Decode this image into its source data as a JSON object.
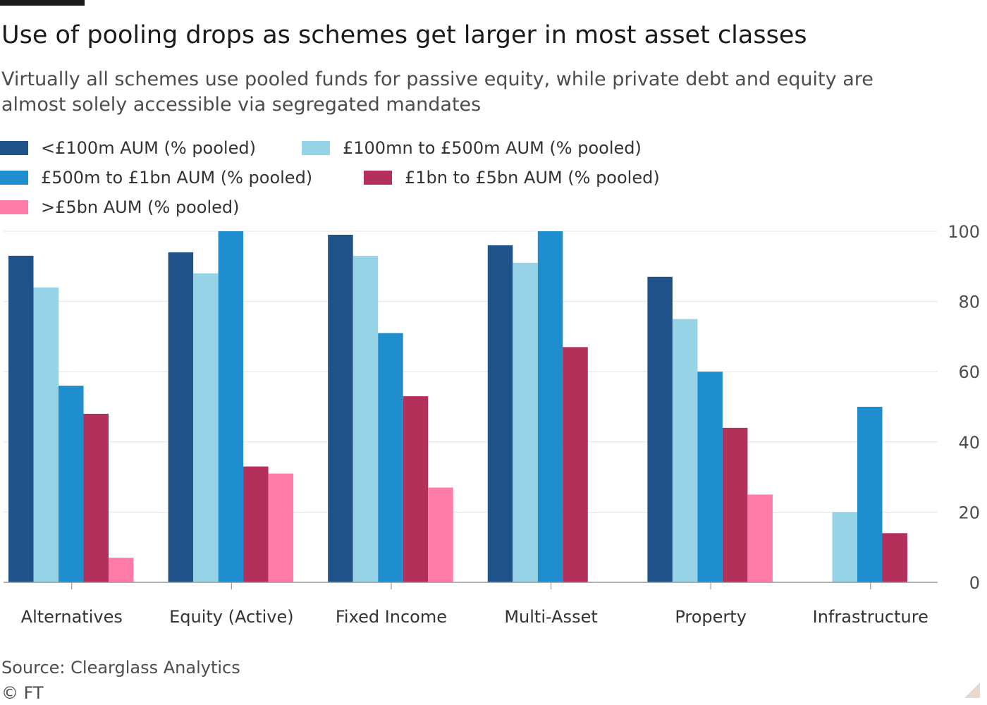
{
  "header": {
    "title": "Use of pooling drops as schemes get larger in most asset classes",
    "subtitle": "Virtually all schemes use pooled funds for passive equity, while private debt and equity are almost solely accessible via segregated mandates"
  },
  "footer": {
    "source": "Source: Clearglass Analytics",
    "copyright": "© FT"
  },
  "chart_data": {
    "type": "bar",
    "title": "Use of pooling drops as schemes get larger in most asset classes",
    "categories": [
      "Alternatives",
      "Equity (Active)",
      "Fixed Income",
      "Multi-Asset",
      "Property",
      "Infrastructure"
    ],
    "series": [
      {
        "name": "<£100m AUM (% pooled)",
        "color": "#1f5289",
        "values": [
          93,
          94,
          99,
          96,
          87,
          null
        ]
      },
      {
        "name": "£100mn to £500m AUM (% pooled)",
        "color": "#96d3e6",
        "values": [
          84,
          88,
          93,
          91,
          75,
          20
        ]
      },
      {
        "name": "£500m to £1bn AUM (% pooled)",
        "color": "#1f8ecf",
        "values": [
          56,
          100,
          71,
          100,
          60,
          50
        ]
      },
      {
        "name": "£1bn to £5bn AUM (% pooled)",
        "color": "#b3305b",
        "values": [
          48,
          33,
          53,
          67,
          44,
          14
        ]
      },
      {
        "name": ">£5bn AUM (% pooled)",
        "color": "#ff7ba8",
        "values": [
          7,
          31,
          27,
          null,
          25,
          null
        ]
      }
    ],
    "ylim": [
      0,
      100
    ],
    "yticks": [
      0,
      20,
      40,
      60,
      80,
      100
    ],
    "y_axis_side": "right",
    "grid": true,
    "legend_position": "top"
  }
}
